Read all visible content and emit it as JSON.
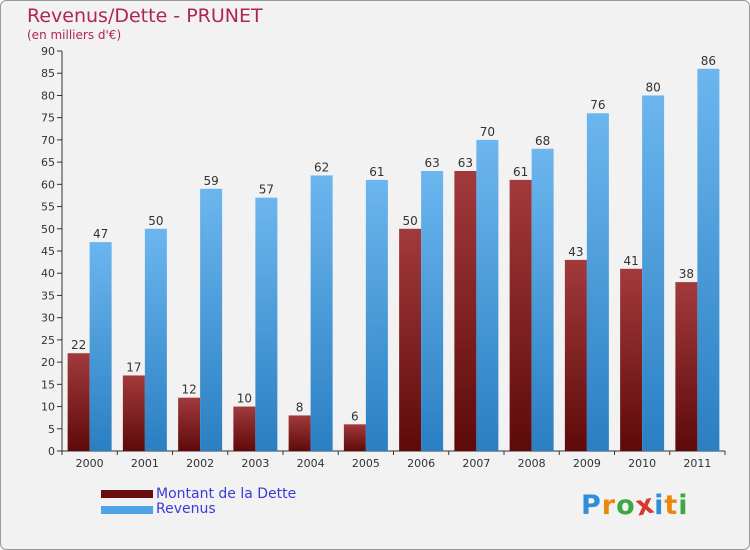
{
  "header": {
    "title": "Revenus/Dette - PRUNET",
    "subtitle": "(en milliers d'€)"
  },
  "colors": {
    "dette_light": "#a23a3c",
    "dette_dark": "#5e0a0a",
    "revenus_light": "#6cb6ef",
    "revenus_dark": "#2a7fc2",
    "axis": "#333333",
    "grid": "#cfcfcf",
    "background": "#f2f2f2"
  },
  "legend": {
    "items": [
      {
        "label": "Montant de la Dette",
        "color": "#6a0d0d"
      },
      {
        "label": "Revenus",
        "color": "#4da3e6"
      }
    ]
  },
  "logo": {
    "letters": [
      {
        "ch": "P",
        "color": "#2e8fd8"
      },
      {
        "ch": "r",
        "color": "#e8890c"
      },
      {
        "ch": "o",
        "color": "#3aa843"
      },
      {
        "ch": "x",
        "color": "#d63a2c"
      },
      {
        "ch": "i",
        "color": "#2e8fd8"
      },
      {
        "ch": "t",
        "color": "#e8890c"
      },
      {
        "ch": "i",
        "color": "#3aa843"
      }
    ]
  },
  "chart_data": {
    "type": "bar",
    "title": "Revenus/Dette - PRUNET",
    "ylabel": "(en milliers d'€)",
    "xlabel": "",
    "ylim": [
      0,
      90
    ],
    "ytick_step": 5,
    "grid": false,
    "legend_position": "bottom-left",
    "categories": [
      "2000",
      "2001",
      "2002",
      "2003",
      "2004",
      "2005",
      "2006",
      "2007",
      "2008",
      "2009",
      "2010",
      "2011"
    ],
    "series": [
      {
        "name": "Montant de la Dette",
        "values": [
          22,
          17,
          12,
          10,
          8,
          6,
          50,
          63,
          61,
          43,
          41,
          38
        ]
      },
      {
        "name": "Revenus",
        "values": [
          47,
          50,
          59,
          57,
          62,
          61,
          63,
          70,
          68,
          76,
          80,
          86
        ]
      }
    ]
  }
}
